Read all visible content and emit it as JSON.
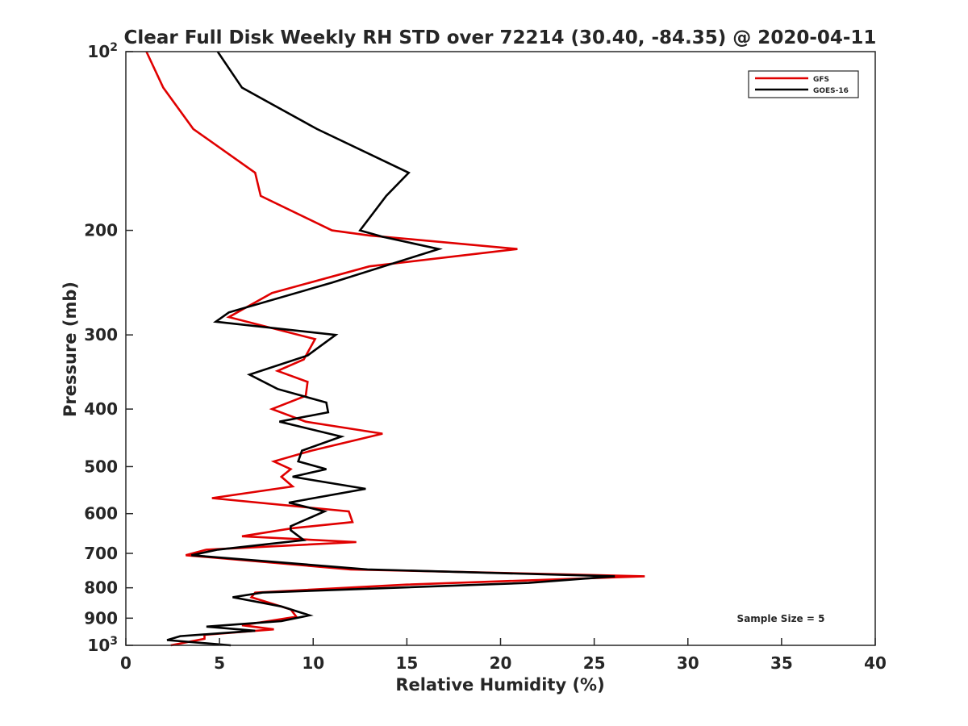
{
  "chart_data": {
    "type": "line",
    "title": "Clear Full Disk Weekly RH STD over 72214 (30.40, -84.35) @ 2020-04-11",
    "xlabel": "Relative Humidity (%)",
    "ylabel": "Pressure (mb)",
    "xlim": [
      0,
      40
    ],
    "ylim": [
      100,
      1000
    ],
    "yscale": "log",
    "y_reversed": true,
    "grid": false,
    "legend_position": "top-right",
    "x_ticks": [
      0,
      5,
      10,
      15,
      20,
      25,
      30,
      35,
      40
    ],
    "x_tick_labels": [
      "0",
      "5",
      "10",
      "15",
      "20",
      "25",
      "30",
      "35",
      "40"
    ],
    "y_ticks": [
      100,
      200,
      300,
      400,
      500,
      600,
      700,
      800,
      900,
      1000
    ],
    "y_tick_labels": [
      {
        "base": "10",
        "exp": "2"
      },
      {
        "base": "200",
        "exp": ""
      },
      {
        "base": "300",
        "exp": ""
      },
      {
        "base": "400",
        "exp": ""
      },
      {
        "base": "500",
        "exp": ""
      },
      {
        "base": "600",
        "exp": ""
      },
      {
        "base": "700",
        "exp": ""
      },
      {
        "base": "800",
        "exp": ""
      },
      {
        "base": "900",
        "exp": ""
      },
      {
        "base": "10",
        "exp": "3"
      }
    ],
    "annotation": "Sample Size = 5",
    "series": [
      {
        "name": "GFS",
        "color": "#e00000",
        "points": [
          [
            1.1,
            100
          ],
          [
            2.0,
            115
          ],
          [
            3.6,
            135
          ],
          [
            6.9,
            160
          ],
          [
            7.2,
            175
          ],
          [
            11.0,
            200
          ],
          [
            13.0,
            204
          ],
          [
            20.9,
            215
          ],
          [
            13.0,
            230
          ],
          [
            7.8,
            255
          ],
          [
            5.5,
            280
          ],
          [
            10.1,
            305
          ],
          [
            9.5,
            330
          ],
          [
            8.1,
            345
          ],
          [
            9.7,
            360
          ],
          [
            9.6,
            380
          ],
          [
            7.8,
            400
          ],
          [
            9.6,
            420
          ],
          [
            13.7,
            440
          ],
          [
            9.9,
            470
          ],
          [
            7.9,
            490
          ],
          [
            8.8,
            505
          ],
          [
            8.3,
            520
          ],
          [
            8.9,
            540
          ],
          [
            4.6,
            565
          ],
          [
            11.9,
            595
          ],
          [
            12.1,
            620
          ],
          [
            8.9,
            635
          ],
          [
            6.2,
            655
          ],
          [
            12.3,
            670
          ],
          [
            4.3,
            690
          ],
          [
            3.2,
            705
          ],
          [
            12.0,
            745
          ],
          [
            27.7,
            765
          ],
          [
            15.0,
            790
          ],
          [
            6.9,
            815
          ],
          [
            6.7,
            830
          ],
          [
            8.8,
            870
          ],
          [
            9.1,
            895
          ],
          [
            6.2,
            925
          ],
          [
            7.9,
            940
          ],
          [
            4.2,
            960
          ],
          [
            4.2,
            975
          ],
          [
            2.4,
            1000
          ]
        ]
      },
      {
        "name": "GOES-16",
        "color": "#000000",
        "points": [
          [
            4.9,
            100
          ],
          [
            6.2,
            115
          ],
          [
            10.2,
            135
          ],
          [
            15.1,
            160
          ],
          [
            13.9,
            175
          ],
          [
            12.5,
            200
          ],
          [
            13.7,
            205
          ],
          [
            16.7,
            215
          ],
          [
            11.0,
            245
          ],
          [
            5.5,
            275
          ],
          [
            4.8,
            285
          ],
          [
            11.2,
            300
          ],
          [
            9.7,
            325
          ],
          [
            6.6,
            350
          ],
          [
            8.1,
            370
          ],
          [
            10.7,
            390
          ],
          [
            10.8,
            405
          ],
          [
            8.2,
            420
          ],
          [
            11.5,
            445
          ],
          [
            9.4,
            470
          ],
          [
            9.2,
            490
          ],
          [
            10.7,
            505
          ],
          [
            8.9,
            520
          ],
          [
            12.8,
            545
          ],
          [
            8.7,
            575
          ],
          [
            10.6,
            595
          ],
          [
            8.8,
            630
          ],
          [
            8.8,
            640
          ],
          [
            9.5,
            665
          ],
          [
            4.9,
            690
          ],
          [
            3.5,
            705
          ],
          [
            12.9,
            745
          ],
          [
            26.1,
            765
          ],
          [
            21.5,
            785
          ],
          [
            7.3,
            815
          ],
          [
            5.7,
            830
          ],
          [
            8.3,
            860
          ],
          [
            9.8,
            890
          ],
          [
            8.3,
            910
          ],
          [
            4.3,
            930
          ],
          [
            6.9,
            945
          ],
          [
            2.9,
            965
          ],
          [
            2.2,
            980
          ],
          [
            5.6,
            1000
          ]
        ]
      }
    ]
  }
}
